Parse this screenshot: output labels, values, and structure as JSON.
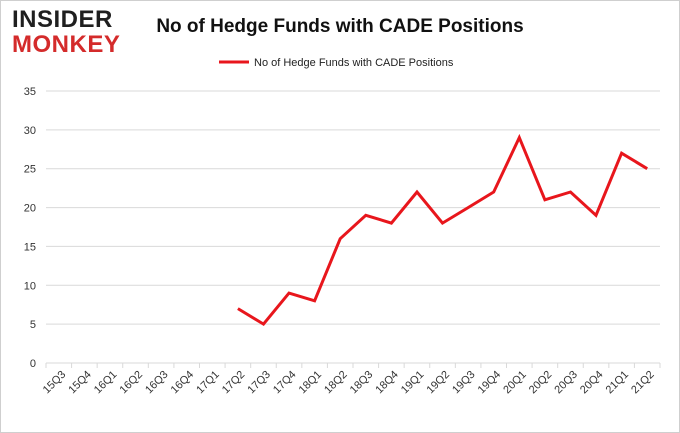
{
  "brand": {
    "line1": "INSIDER",
    "line2": "MONKEY"
  },
  "colors": {
    "line": "#e8161c",
    "grid": "#d9d9d9",
    "brand_dark": "#1f1f1f",
    "brand_red": "#d42b2b"
  },
  "chart_data": {
    "type": "line",
    "title": "No of Hedge Funds with CADE Positions",
    "xlabel": "",
    "ylabel": "",
    "ylim": [
      0,
      35
    ],
    "yticks": [
      0,
      5,
      10,
      15,
      20,
      25,
      30,
      35
    ],
    "grid": true,
    "legend": "top-center",
    "categories": [
      "15Q3",
      "15Q4",
      "16Q1",
      "16Q2",
      "16Q3",
      "16Q4",
      "17Q1",
      "17Q2",
      "17Q3",
      "17Q4",
      "18Q1",
      "18Q2",
      "18Q3",
      "18Q4",
      "19Q1",
      "19Q2",
      "19Q3",
      "19Q4",
      "20Q1",
      "20Q2",
      "20Q3",
      "20Q4",
      "21Q1",
      "21Q2"
    ],
    "series": [
      {
        "name": "No of Hedge Funds with CADE Positions",
        "values": [
          null,
          null,
          null,
          null,
          null,
          null,
          null,
          7,
          5,
          9,
          8,
          16,
          19,
          18,
          22,
          18,
          20,
          22,
          29,
          21,
          22,
          19,
          27,
          25
        ]
      }
    ]
  }
}
